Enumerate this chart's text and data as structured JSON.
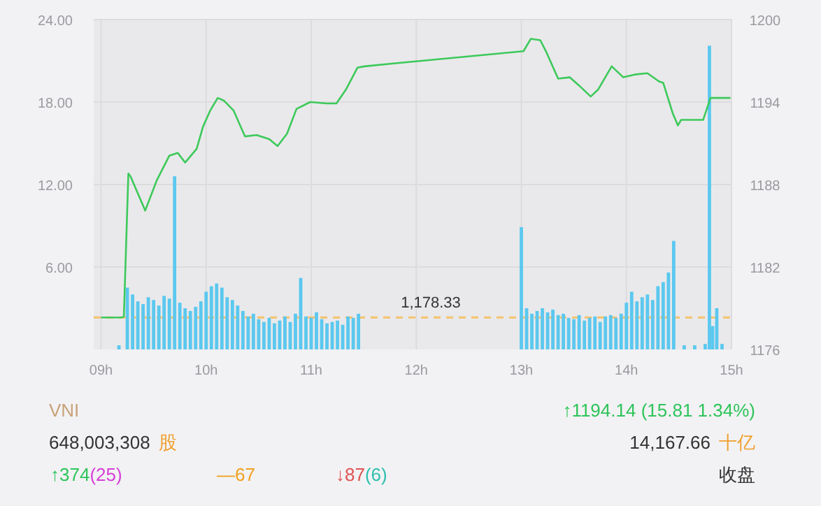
{
  "chart_data": {
    "type": "bar",
    "xlim": [
      8.93,
      15
    ],
    "xticks": [
      {
        "value": 9,
        "label": "09h"
      },
      {
        "value": 10,
        "label": "10h"
      },
      {
        "value": 11,
        "label": "11h"
      },
      {
        "value": 12,
        "label": "12h"
      },
      {
        "value": 13,
        "label": "13h"
      },
      {
        "value": 14,
        "label": "14h"
      },
      {
        "value": 15,
        "label": "15h"
      }
    ],
    "ylim": [
      0,
      24
    ],
    "yticks": [
      {
        "value": 6,
        "label": "6.00"
      },
      {
        "value": 12,
        "label": "12.00"
      },
      {
        "value": 18,
        "label": "18.00"
      },
      {
        "value": 24,
        "label": "24.00"
      }
    ],
    "y2lim": [
      1176,
      1200
    ],
    "y2ticks": [
      1176,
      1182,
      1188,
      1194,
      1200
    ],
    "grid": true,
    "series": [
      {
        "color": "#5bc8ef",
        "x": [
          9.17,
          9.25,
          9.3,
          9.35,
          9.4,
          9.45,
          9.5,
          9.55,
          9.6,
          9.65,
          9.7,
          9.75,
          9.8,
          9.85,
          9.9,
          9.95,
          10,
          10.05,
          10.1,
          10.15,
          10.2,
          10.25,
          10.3,
          10.35,
          10.4,
          10.45,
          10.5,
          10.55,
          10.6,
          10.65,
          10.7,
          10.75,
          10.8,
          10.85,
          10.9,
          10.95,
          11,
          11.05,
          11.1,
          11.15,
          11.2,
          11.25,
          11.3,
          11.35,
          11.4,
          11.45,
          13,
          13.05,
          13.1,
          13.15,
          13.2,
          13.25,
          13.3,
          13.35,
          13.4,
          13.45,
          13.5,
          13.55,
          13.6,
          13.65,
          13.7,
          13.75,
          13.8,
          13.85,
          13.9,
          13.95,
          14,
          14.05,
          14.1,
          14.15,
          14.2,
          14.25,
          14.3,
          14.35,
          14.4,
          14.45,
          14.55,
          14.65,
          14.75,
          14.79,
          14.82,
          14.86,
          14.91
        ],
        "values": [
          0.3,
          4.5,
          4.0,
          3.5,
          3.3,
          3.8,
          3.6,
          3.2,
          3.9,
          3.7,
          12.6,
          3.4,
          3.0,
          2.8,
          3.1,
          3.5,
          4.2,
          4.6,
          4.8,
          4.5,
          3.8,
          3.6,
          3.2,
          2.8,
          2.4,
          2.6,
          2.2,
          2.0,
          2.3,
          1.9,
          2.1,
          2.4,
          2.0,
          2.6,
          5.2,
          2.4,
          2.3,
          2.7,
          2.2,
          1.9,
          2.0,
          2.1,
          1.8,
          2.4,
          2.3,
          2.6,
          8.9,
          3.0,
          2.6,
          2.8,
          3.0,
          2.7,
          2.9,
          2.5,
          2.6,
          2.3,
          2.2,
          2.5,
          2.1,
          2.3,
          2.4,
          2.0,
          2.4,
          2.5,
          2.3,
          2.6,
          3.4,
          4.2,
          3.5,
          3.8,
          4.0,
          3.6,
          4.6,
          4.9,
          5.6,
          7.9,
          0.3,
          0.3,
          0.4,
          22.1,
          1.7,
          3.0,
          0.4
        ]
      },
      {
        "type": "line",
        "axis": "y2",
        "color": "#3dc95a",
        "x": [
          9,
          9.2,
          9.217,
          9.26,
          9.28,
          9.42,
          9.53,
          9.65,
          9.73,
          9.8,
          9.91,
          9.97,
          10.04,
          10.11,
          10.17,
          10.26,
          10.37,
          10.48,
          10.6,
          10.68,
          10.77,
          10.86,
          10.99,
          11.15,
          11.24,
          11.33,
          11.44,
          11.51,
          11.77,
          13.02,
          13.09,
          13.18,
          13.24,
          13.35,
          13.46,
          13.55,
          13.66,
          13.73,
          13.86,
          13.97,
          14.08,
          14.2,
          14.31,
          14.35,
          14.44,
          14.49,
          14.52,
          14.73,
          14.8,
          14.99
        ],
        "values": [
          1178.33,
          1178.33,
          1178.4,
          1188.8,
          1188.6,
          1186.1,
          1188.3,
          1190.1,
          1190.3,
          1189.6,
          1190.6,
          1192.2,
          1193.4,
          1194.3,
          1194.1,
          1193.4,
          1191.5,
          1191.6,
          1191.3,
          1190.8,
          1191.7,
          1193.5,
          1194.0,
          1193.9,
          1193.9,
          1194.9,
          1196.5,
          1196.6,
          1196.8,
          1197.7,
          1198.6,
          1198.5,
          1197.6,
          1195.7,
          1195.8,
          1195.2,
          1194.4,
          1194.9,
          1196.6,
          1195.8,
          1196.0,
          1196.1,
          1195.5,
          1195.4,
          1193.2,
          1192.3,
          1192.7,
          1192.7,
          1194.3,
          1194.3
        ]
      }
    ],
    "ref_lines": [
      {
        "axis": "y2",
        "value": 1178.33,
        "label": "1,178.33",
        "color": "#f5c26b",
        "line_style": "dashed"
      }
    ],
    "annotations": [
      "VNI",
      "648,003,308",
      "股",
      "↑1194.14 (15.81 1.34%)",
      "14,167.66",
      "十亿",
      "↑374",
      "(25)",
      "—67",
      "↓87",
      "(6)",
      "收盘"
    ]
  }
}
